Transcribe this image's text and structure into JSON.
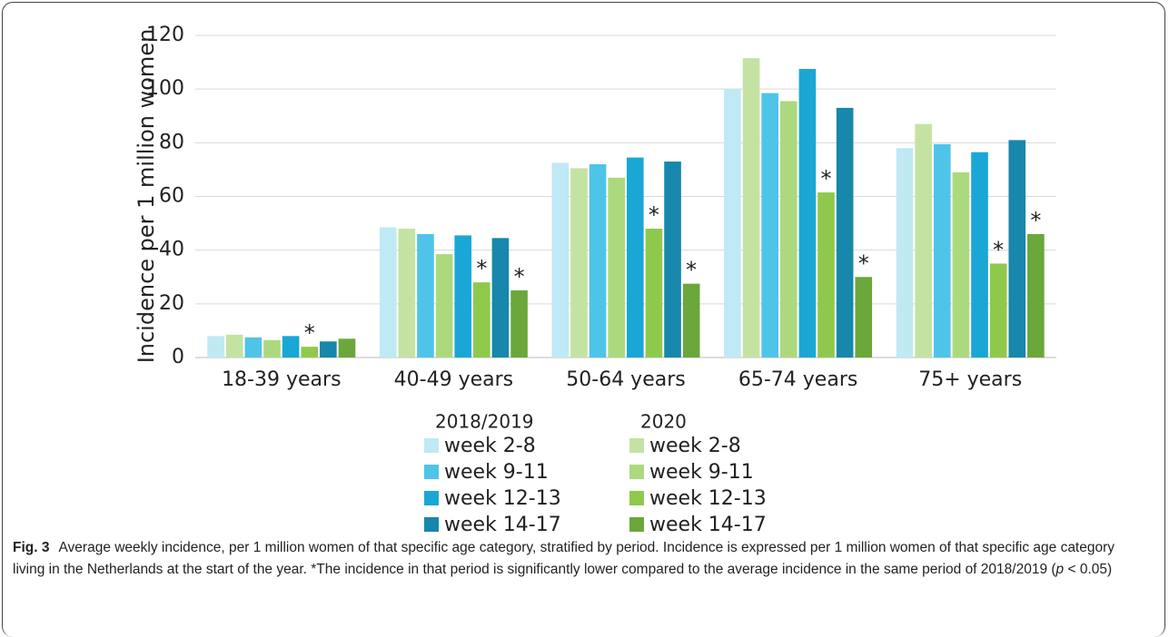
{
  "chart_data": {
    "type": "bar",
    "y_label": "Incidence per 1 million women",
    "categories": [
      "18-39 years",
      "40-49 years",
      "50-64 years",
      "65-74 years",
      "75+ years"
    ],
    "ylim": [
      0,
      120
    ],
    "yticks": [
      0,
      20,
      40,
      60,
      80,
      100,
      120
    ],
    "grid": true,
    "series_groups": [
      {
        "name": "2018/2019",
        "series": [
          {
            "name": "week 2-8",
            "color": "#bfe9f4",
            "values": [
              8,
              48.5,
              72.5,
              100,
              78
            ]
          },
          {
            "name": "week 9-11",
            "color": "#4fc4e9",
            "values": [
              7.5,
              46,
              72,
              98.5,
              79.5
            ]
          },
          {
            "name": "week 12-13",
            "color": "#1aa7d6",
            "values": [
              8,
              45.5,
              74.5,
              107.5,
              76.5
            ]
          },
          {
            "name": "week 14-17",
            "color": "#1787ab",
            "values": [
              6,
              44.5,
              73,
              93,
              81
            ]
          }
        ]
      },
      {
        "name": "2020",
        "series": [
          {
            "name": "week 2-8",
            "color": "#c4e3a3",
            "values": [
              8.5,
              48,
              70.5,
              111.5,
              87
            ]
          },
          {
            "name": "week 9-11",
            "color": "#acd97e",
            "values": [
              6.5,
              38.5,
              67,
              95.5,
              69
            ]
          },
          {
            "name": "week 12-13",
            "color": "#8fc94c",
            "values": [
              4,
              28,
              48,
              61.5,
              35
            ],
            "significance": [
              "*",
              "*",
              "*",
              "*",
              "*"
            ]
          },
          {
            "name": "week 14-17",
            "color": "#6ba73a",
            "values": [
              7,
              25,
              27.5,
              30,
              46
            ],
            "significance": [
              null,
              "*",
              "*",
              "*",
              "*"
            ]
          }
        ]
      }
    ],
    "caption": {
      "label": "Fig. 3",
      "text": "Average weekly incidence, per 1 million women of that specific age category, stratified by period. Incidence is expressed per 1 million women of that specific age category living in the Netherlands at the start of the year. *The incidence in that period is significantly lower compared to the average incidence in the same period of 2018/2019 (",
      "italic": "p",
      "end": " < 0.05)"
    }
  }
}
